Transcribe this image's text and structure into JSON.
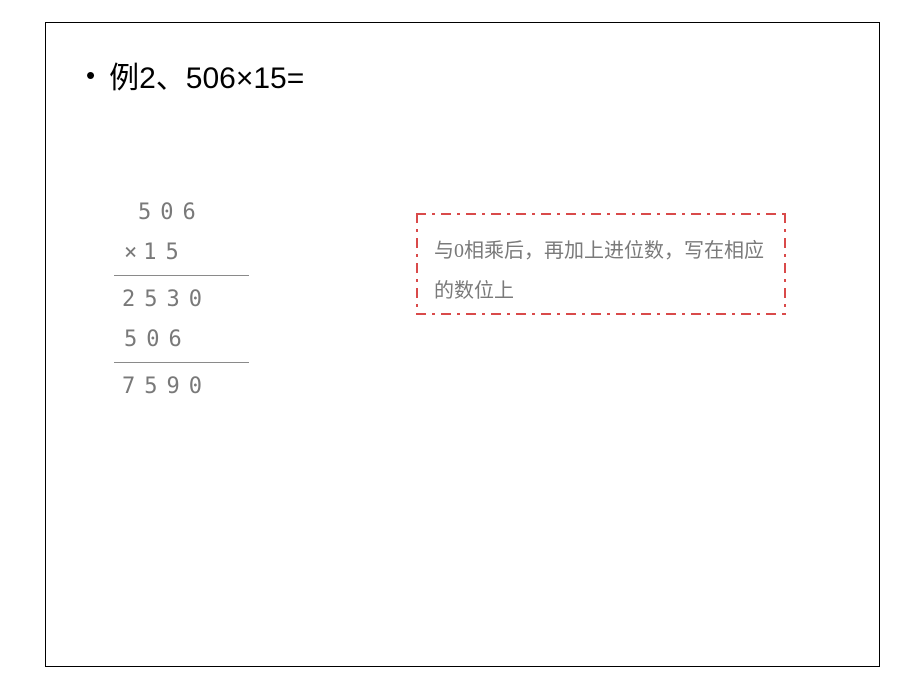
{
  "slide": {
    "bullet": "•",
    "title": "例2、506×15=",
    "calculation": {
      "row1": "506",
      "row2_sign": "×",
      "row2_num": "15",
      "row3": "2530",
      "row4": "506",
      "row5": "7590",
      "line_color": "#8a8a8a",
      "text_color": "#797979"
    },
    "note": {
      "text": "与0相乘后，再加上进位数，写在相应的数位上",
      "border_color": "#d94a4a",
      "text_color": "#7a7a7a"
    },
    "box_border_color": "#000000",
    "background_color": "#ffffff"
  }
}
